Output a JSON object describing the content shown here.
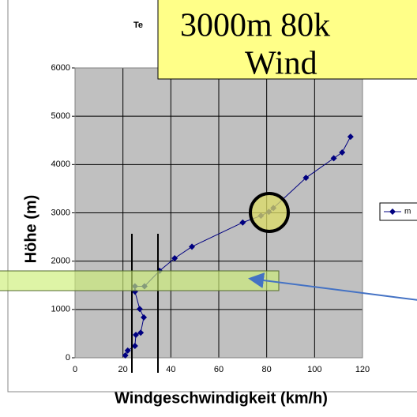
{
  "chart_data": {
    "type": "line",
    "title": "Te",
    "xlabel": "Windgeschwindigkeit (km/h)",
    "ylabel": "Höhe (m)",
    "annotations": [
      "3000m 80k",
      "Wind"
    ],
    "series": [
      {
        "name": "m",
        "color": "#000080",
        "x": [
          21,
          22,
          25,
          25.4,
          27.4,
          28.7,
          27,
          25,
          25,
          29,
          35.3,
          41.6,
          48.8,
          70,
          77.6,
          80.9,
          82.8,
          96.4,
          108,
          111.5,
          115
        ],
        "values": [
          50,
          150,
          245,
          475,
          520,
          835,
          1010,
          1370,
          1480,
          1480,
          1800,
          2060,
          2300,
          2800,
          2940,
          3020,
          3100,
          3725,
          4130,
          4250,
          4575
        ]
      }
    ],
    "xlim": [
      0,
      120
    ],
    "xticks": [
      0,
      20,
      40,
      60,
      80,
      100,
      120
    ],
    "ylim": [
      0,
      6000
    ],
    "yticks": [
      0,
      1000,
      2000,
      3000,
      4000,
      5000,
      6000
    ],
    "grid": true
  }
}
